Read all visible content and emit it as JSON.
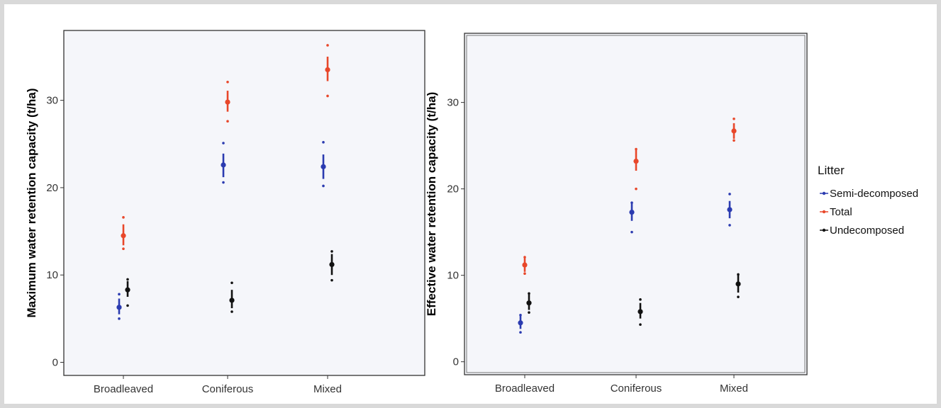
{
  "chart_data": [
    {
      "type": "scatter",
      "ylabel": "Maximum water retention capacity (t/ha)",
      "xlabel": "",
      "categories": [
        "Broadleaved",
        "Coniferous",
        "Mixed"
      ],
      "yticks": [
        0,
        10,
        20,
        30
      ],
      "ylim": [
        -1.5,
        38
      ],
      "grid": false,
      "series": [
        {
          "name": "Semi-decomposed",
          "mean": [
            6.3,
            22.6,
            22.4
          ],
          "ci": [
            [
              5.5,
              7.3
            ],
            [
              21.2,
              23.9
            ],
            [
              21.0,
              23.8
            ]
          ],
          "points": [
            [
              5.0,
              7.8
            ],
            [
              20.6,
              25.1
            ],
            [
              20.2,
              25.2
            ]
          ]
        },
        {
          "name": "Total",
          "mean": [
            14.5,
            29.8,
            33.5
          ],
          "ci": [
            [
              13.4,
              15.8
            ],
            [
              28.7,
              31.1
            ],
            [
              32.2,
              35.0
            ]
          ],
          "points": [
            [
              13.0,
              16.6
            ],
            [
              27.6,
              32.1
            ],
            [
              30.5,
              36.3
            ]
          ]
        },
        {
          "name": "Undecomposed",
          "mean": [
            8.3,
            7.1,
            11.2
          ],
          "ci": [
            [
              7.5,
              9.3
            ],
            [
              6.2,
              8.3
            ],
            [
              10.0,
              12.4
            ]
          ],
          "points": [
            [
              6.5,
              9.5
            ],
            [
              5.8,
              9.1
            ],
            [
              9.4,
              12.7
            ]
          ]
        }
      ]
    },
    {
      "type": "scatter",
      "ylabel": "Effective water retention capacity (t/ha)",
      "xlabel": "",
      "categories": [
        "Broadleaved",
        "Coniferous",
        "Mixed"
      ],
      "yticks": [
        0,
        10,
        20,
        30
      ],
      "ylim": [
        -1.5,
        38
      ],
      "grid": false,
      "series": [
        {
          "name": "Semi-decomposed",
          "mean": [
            4.5,
            17.3,
            17.6
          ],
          "ci": [
            [
              3.8,
              5.3
            ],
            [
              16.3,
              18.3
            ],
            [
              16.6,
              18.6
            ]
          ],
          "points": [
            [
              3.4,
              5.4
            ],
            [
              15.0,
              18.4
            ],
            [
              15.8,
              19.4
            ]
          ]
        },
        {
          "name": "Total",
          "mean": [
            11.2,
            23.2,
            26.7
          ],
          "ci": [
            [
              10.4,
              12.0
            ],
            [
              22.1,
              24.5
            ],
            [
              25.8,
              27.6
            ]
          ],
          "points": [
            [
              10.2,
              12.1
            ],
            [
              20.0,
              24.6
            ],
            [
              25.6,
              28.1
            ]
          ]
        },
        {
          "name": "Undecomposed",
          "mean": [
            6.8,
            5.8,
            9.0
          ],
          "ci": [
            [
              6.0,
              7.8
            ],
            [
              5.0,
              6.8
            ],
            [
              8.0,
              10.0
            ]
          ],
          "points": [
            [
              5.7,
              7.9
            ],
            [
              4.3,
              7.2
            ],
            [
              7.5,
              10.1
            ]
          ]
        }
      ]
    }
  ],
  "legend": {
    "title": "Litter",
    "position": "right",
    "items": [
      {
        "name": "Semi-decomposed",
        "color": "#2b3bb0"
      },
      {
        "name": "Total",
        "color": "#e8472a"
      },
      {
        "name": "Undecomposed",
        "color": "#111111"
      }
    ]
  },
  "colors": {
    "Semi-decomposed": "#2b3bb0",
    "Total": "#e8472a",
    "Undecomposed": "#111111",
    "panel_background": "#f5f6fa"
  }
}
